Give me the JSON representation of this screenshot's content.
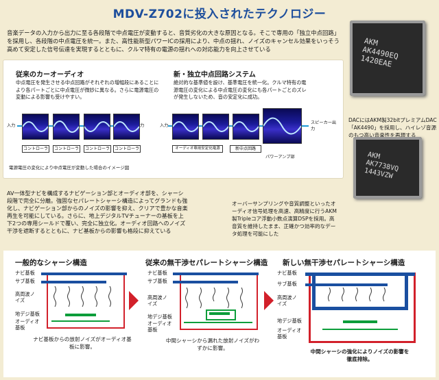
{
  "title": "MDV-Z702に投入されたテクノロジー",
  "intro": "音楽データの入力から出力に至る各段階で中点電圧が変動すると、音質劣化の大きな原因となる。そこで専用の「独立中点回路」を採用し、各段階の中点電圧を統一。また、高性能新型パワーICの採用により、中点の揺れ、ノイズのキャンセル効果をいっそう高めて安定した信号伝達を実現するとともに、クルマ特有の電源の揺れへの対応能力を向上させている",
  "left_panel": {
    "heading": "従来のカーオーディオ",
    "text": "中点電圧を発生させる中点回路がそれぞれの増幅段にあることにより各パートごとに中点電圧が微妙に異なる。さらに電源電圧の変動による影響も受けやすい。",
    "input_label": "入力",
    "output_label": "出力",
    "controllers": [
      "コントローラ",
      "コントローラ",
      "コントローラ",
      "コントローラ"
    ],
    "footnote": "電源電圧の変化により中点電圧が変動した場合のイメージ図"
  },
  "right_panel": {
    "heading": "新・独立中点回路システム",
    "text": "絶対的な基準値を設け、基準電圧を統一化。クルマ特有の電源電圧の変化による中点電圧の変化にも各パートごとのズレが発生しないため、音の安定化に成功。",
    "input_label": "入力",
    "speaker_label": "スピーカー出力",
    "box1": "オーディオ専用安定化電源",
    "box2": "新中点回路",
    "power_amp": "パワーアンプ部"
  },
  "chip1": {
    "line1": "AKM",
    "line2": "AK4490EQ",
    "line3": "1420EAE"
  },
  "chip1_caption": "DACにはAKM製32bitプレミアムDAC「AK4490」を採用し、ハイレゾ音源のもつ高い音楽性を再現する",
  "chip2": {
    "line1": "AKM",
    "line2": "AK7738VQ",
    "line3": "1443VZW"
  },
  "chip2_caption": "オーバーサンプリングや音質調整といったオーディオ信号処理を高速、高精度に行うAKM製Tripleコア浮動小数点演算DSPを採用。高音質を維持したまま、正確かつ効率的なデータ処理を可能にした",
  "body_text": "AV一体型ナビを構成するナビゲーション部とオーディオ部を、シャーシ段階で完全に分離。強固なセパレートシャーシ構造によってグランドも強化し、ナビゲーション部からのノイズの影響を抑え、クリアで豊かな音楽再生を可能にしている。さらに、地上デジタルTVチューナーの基板を上下2つの専用シールドで覆い、完全に独立化。オーディオ回路へのノイズ干渉を遮断するとともに、ナビ基板からの影響も格段に抑えている",
  "diagrams": [
    {
      "heading": "一般的なシャーシ構造",
      "labels": [
        "ナビ基板",
        "サブ基板",
        "高周波ノイズ",
        "地デジ基板",
        "オーディオ基板"
      ],
      "caption": "ナビ基板からの放射ノイズがオーディオ基板に影響。"
    },
    {
      "heading": "従来の無干渉セパレートシャーシ構造",
      "labels": [
        "ナビ基板",
        "サブ基板",
        "高周波ノイズ",
        "地デジ基板",
        "オーディオ基板"
      ],
      "caption": "中間シャーシから漏れた放射ノイズがわずかに影響。"
    },
    {
      "heading": "新しい無干渉セパレートシャーシ構造",
      "labels": [
        "ナビ基板",
        "サブ基板",
        "高周波ノイズ",
        "地デジ基板",
        "オーディオ基板"
      ],
      "caption": "中間シャーシの強化によりノイズの影響を徹底排除。"
    }
  ],
  "colors": {
    "title": "#1d4e9c",
    "chassis_blue": "#1a4fa0",
    "board_green": "#0c9d3a",
    "chassis_red": "#d2202a"
  }
}
